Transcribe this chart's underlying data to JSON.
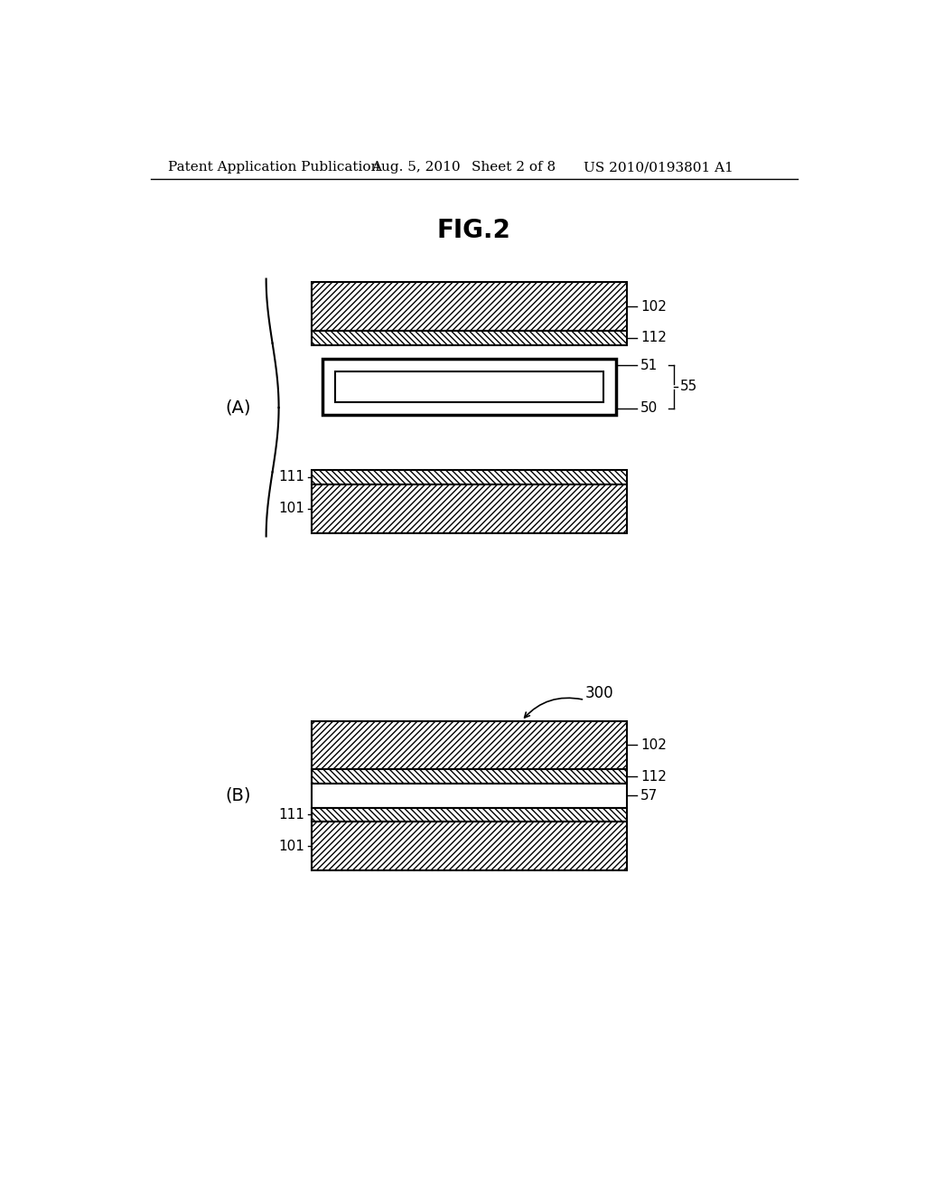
{
  "bg_color": "#ffffff",
  "header_text": "Patent Application Publication",
  "header_date": "Aug. 5, 2010",
  "header_sheet": "Sheet 2 of 8",
  "header_patent": "US 2010/0193801 A1",
  "fig_title": "FIG.2",
  "line_color": "#000000",
  "section_A_label": "(A)",
  "section_B_label": "(B)",
  "label_300": "300"
}
